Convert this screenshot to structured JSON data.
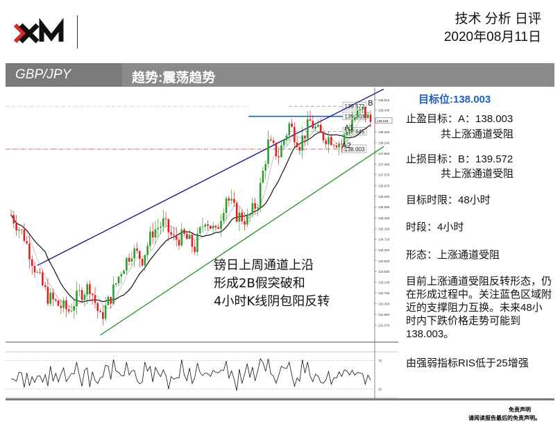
{
  "header": {
    "logo_text": "XM",
    "title": "技术 分析 日评",
    "date": "2020年08月11日"
  },
  "band": {
    "pair": "GBP/JPY",
    "trend_label": "趋势:震荡趋势"
  },
  "chart_data": {
    "type": "candlestick",
    "instrument": "GBP/JPY",
    "timeframe": "4小时",
    "ylim": [
      130.97,
      140.21
    ],
    "price_ticks": [
      "139.810",
      "139.430",
      "139.040",
      "138.640",
      "138.240",
      "137.850",
      "137.460",
      "137.070",
      "136.670",
      "136.280",
      "135.890",
      "135.490",
      "135.100",
      "134.710",
      "134.320",
      "133.920",
      "133.530",
      "133.140",
      "132.750",
      "132.350",
      "131.960",
      "131.570"
    ],
    "levels": [
      {
        "value": 139.572,
        "label": "139.572",
        "style": "gray-dashed"
      },
      {
        "value": 139.203,
        "label": "139.203",
        "style": "blue-solid"
      },
      {
        "value": 138.645,
        "label": "138.645",
        "style": "gray-dashed"
      },
      {
        "value": 138.003,
        "label": "138.003",
        "style": "red-dashdot"
      }
    ],
    "current_price": "139.048",
    "annotations": [
      {
        "label": "B",
        "x": 136,
        "y": 139.6
      },
      {
        "label": "A1",
        "x": 127,
        "y": 138.7
      },
      {
        "label": "A2",
        "x": 126,
        "y": 138.05
      }
    ],
    "callout": [
      "镑日上周通道上沿",
      "形成2B假突破和",
      "4小时K线阴包阳反转"
    ],
    "channel": {
      "upper": {
        "from": [
          10,
          133.75
        ],
        "to": [
          142,
          140.2
        ]
      },
      "lower": {
        "from": [
          34,
          131.2
        ],
        "to": [
          142,
          138.1
        ]
      }
    },
    "candles_count": 150,
    "anchors": [
      [
        0,
        135.6
      ],
      [
        5,
        134.8
      ],
      [
        10,
        133.4
      ],
      [
        14,
        132.6
      ],
      [
        18,
        132.3
      ],
      [
        22,
        132.1
      ],
      [
        26,
        132.7
      ],
      [
        30,
        133.0
      ],
      [
        34,
        131.8
      ],
      [
        38,
        132.6
      ],
      [
        42,
        133.6
      ],
      [
        46,
        134.3
      ],
      [
        50,
        134.0
      ],
      [
        54,
        135.0
      ],
      [
        58,
        135.3
      ],
      [
        62,
        134.7
      ],
      [
        66,
        134.8
      ],
      [
        70,
        134.4
      ],
      [
        74,
        135.5
      ],
      [
        78,
        134.9
      ],
      [
        82,
        136.3
      ],
      [
        86,
        135.6
      ],
      [
        90,
        135.4
      ],
      [
        94,
        136.1
      ],
      [
        98,
        138.2
      ],
      [
        102,
        137.8
      ],
      [
        106,
        138.9
      ],
      [
        110,
        138.2
      ],
      [
        114,
        139.0
      ],
      [
        118,
        138.5
      ],
      [
        122,
        138.4
      ],
      [
        126,
        138.2
      ],
      [
        130,
        139.1
      ],
      [
        134,
        139.4
      ],
      [
        137,
        139.0
      ]
    ],
    "rsi": {
      "levels": [
        75,
        25
      ],
      "ylim": [
        10,
        90
      ]
    }
  },
  "panel": {
    "target_level": "目标位:138.003",
    "tp_label": "止盈目标：A：138.003",
    "tp_note": "共上涨通道受阻",
    "sl_label": "止损目标：B：139.572",
    "sl_note": "共上涨通道受阻",
    "time_limit": "目标时限：48小时",
    "period": "时段：4小时",
    "pattern": "形态：上涨通道受阻",
    "analysis": "目前上涨通道受阻反转形态，仍在形成过程中。关注蓝色区域附近的支撑阻力互换。未来48小时内下跌价格走势可能到138.003。",
    "rsi_note": "由强弱指标RIS低于25增强"
  },
  "footer": {
    "disclaimer_title": "免责声明",
    "disclaimer_text": "请阅读报告最后的免责声明。"
  },
  "colors": {
    "bull": "#2e9e2e",
    "bear": "#e02020",
    "channel_upper": "#1a1a8c",
    "channel_lower": "#2e9a2e",
    "band": "#8a8a8a",
    "accent": "#1f5fbf"
  }
}
